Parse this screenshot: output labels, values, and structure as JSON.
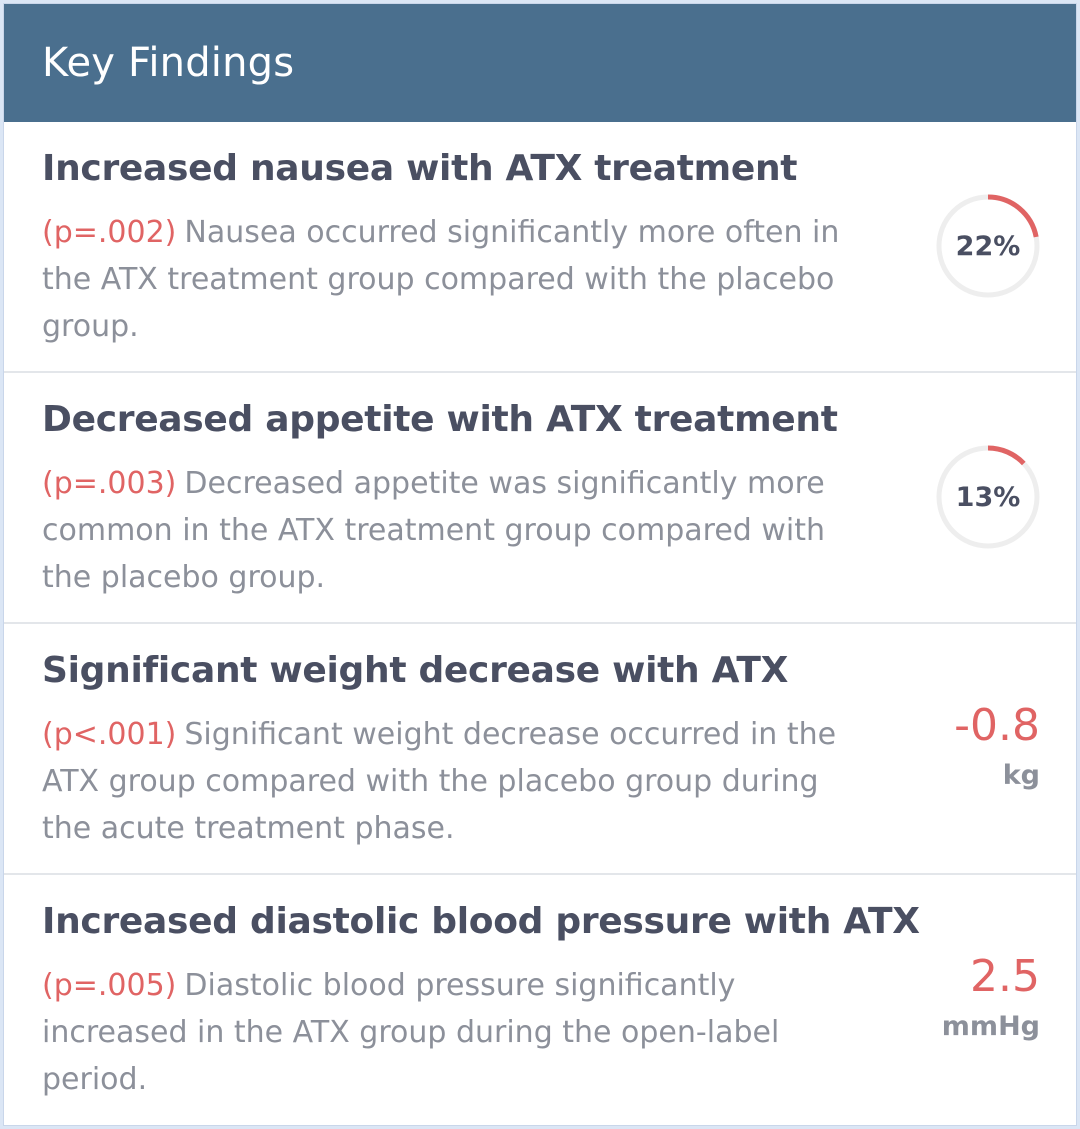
{
  "header": {
    "title": "Key Findings"
  },
  "colors": {
    "header_bg": "#4a6f8e",
    "accent_red": "#e06464",
    "ring_track": "#eeeeee",
    "title_text": "#4a4f62",
    "body_text": "#8c909a"
  },
  "findings": [
    {
      "title": "Increased nausea with ATX treatment",
      "p_value": "(p=.002)",
      "description": "Nausea occurred significantly more often in the ATX treatment group compared with the placebo group.",
      "indicator": "ring",
      "percent_label": "22%",
      "percent_value": 22
    },
    {
      "title": "Decreased appetite with ATX treatment",
      "p_value": "(p=.003)",
      "description": "Decreased appetite was significantly more common in the ATX treatment group compared with the placebo group.",
      "indicator": "ring",
      "percent_label": "13%",
      "percent_value": 13
    },
    {
      "title": "Significant weight decrease with ATX",
      "p_value": "(p<.001)",
      "description": "Significant weight decrease occurred in the ATX group compared with the placebo group during the acute treatment phase.",
      "indicator": "metric",
      "metric_value": "-0.8",
      "metric_unit": "kg"
    },
    {
      "title": "Increased diastolic blood pressure with ATX",
      "p_value": "(p=.005)",
      "description": "Diastolic blood pressure significantly increased in the ATX group during the open-label period.",
      "indicator": "metric",
      "metric_value": "2.5",
      "metric_unit": "mmHg"
    }
  ]
}
